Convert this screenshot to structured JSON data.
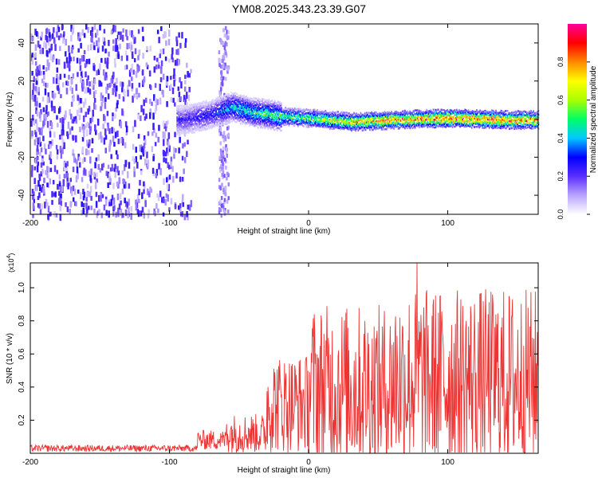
{
  "title": "YM08.2025.343.23.39.G07",
  "chart_data": [
    {
      "type": "heatmap",
      "xlabel": "Height of straight line (km)",
      "ylabel": "Frequency (Hz)",
      "xlim": [
        -200,
        165
      ],
      "ylim": [
        -50,
        50
      ],
      "xticks": [
        -200,
        -100,
        0,
        100
      ],
      "yticks": [
        -40,
        -20,
        0,
        20,
        40
      ],
      "colorbar": {
        "label": "Normalized spectral amplitude",
        "range": [
          0,
          1
        ],
        "ticks": [
          "0.0",
          "0.2",
          "0.4",
          "0.6",
          "0.8"
        ],
        "colors": [
          "#ffffff",
          "#b9a4ff",
          "#5a2eff",
          "#0000ff",
          "#00c8ff",
          "#00ff66",
          "#aaff00",
          "#ffff00",
          "#ff8800",
          "#ff0000",
          "#ff0099"
        ]
      },
      "ridge": {
        "description_points": [
          {
            "x": -90,
            "freq": 0,
            "amp": 0.25
          },
          {
            "x": -70,
            "freq": 3,
            "amp": 0.3
          },
          {
            "x": -55,
            "freq": 7,
            "amp": 0.45
          },
          {
            "x": -40,
            "freq": 4,
            "amp": 0.5
          },
          {
            "x": -20,
            "freq": 2,
            "amp": 0.55
          },
          {
            "x": 0,
            "freq": 1,
            "amp": 0.6
          },
          {
            "x": 30,
            "freq": -1,
            "amp": 0.75
          },
          {
            "x": 60,
            "freq": 0,
            "amp": 0.8
          },
          {
            "x": 100,
            "freq": 1,
            "amp": 0.9
          },
          {
            "x": 150,
            "freq": 0,
            "amp": 0.85
          }
        ]
      },
      "noise_region": {
        "x_from": -200,
        "x_to": -85,
        "band_from": -65,
        "band_to": -58
      }
    },
    {
      "type": "line",
      "xlabel": "Height of straight line (km)",
      "ylabel": "SNR (10 * v/v)",
      "y_multiplier": "(x10",
      "y_multiplier_exp": "4",
      "y_multiplier_close": ")",
      "xlim": [
        -200,
        165
      ],
      "ylim": [
        0,
        1.15
      ],
      "xticks": [
        -200,
        -100,
        0,
        100
      ],
      "yticks": [
        "0.2",
        "0.4",
        "0.6",
        "0.8",
        "1.0"
      ],
      "color": "#ee3333",
      "segments": [
        {
          "x_from": -200,
          "x_to": -80,
          "mean": 0.03,
          "spread": 0.02
        },
        {
          "x_from": -80,
          "x_to": -60,
          "mean": 0.08,
          "spread": 0.06
        },
        {
          "x_from": -60,
          "x_to": -30,
          "mean": 0.12,
          "spread": 0.12
        },
        {
          "x_from": -30,
          "x_to": 0,
          "mean": 0.3,
          "spread": 0.3
        },
        {
          "x_from": 0,
          "x_to": 60,
          "mean": 0.4,
          "spread": 0.5
        },
        {
          "x_from": 60,
          "x_to": 165,
          "mean": 0.45,
          "spread": 0.55
        }
      ],
      "peak": {
        "x": 78,
        "y": 1.15
      }
    }
  ]
}
